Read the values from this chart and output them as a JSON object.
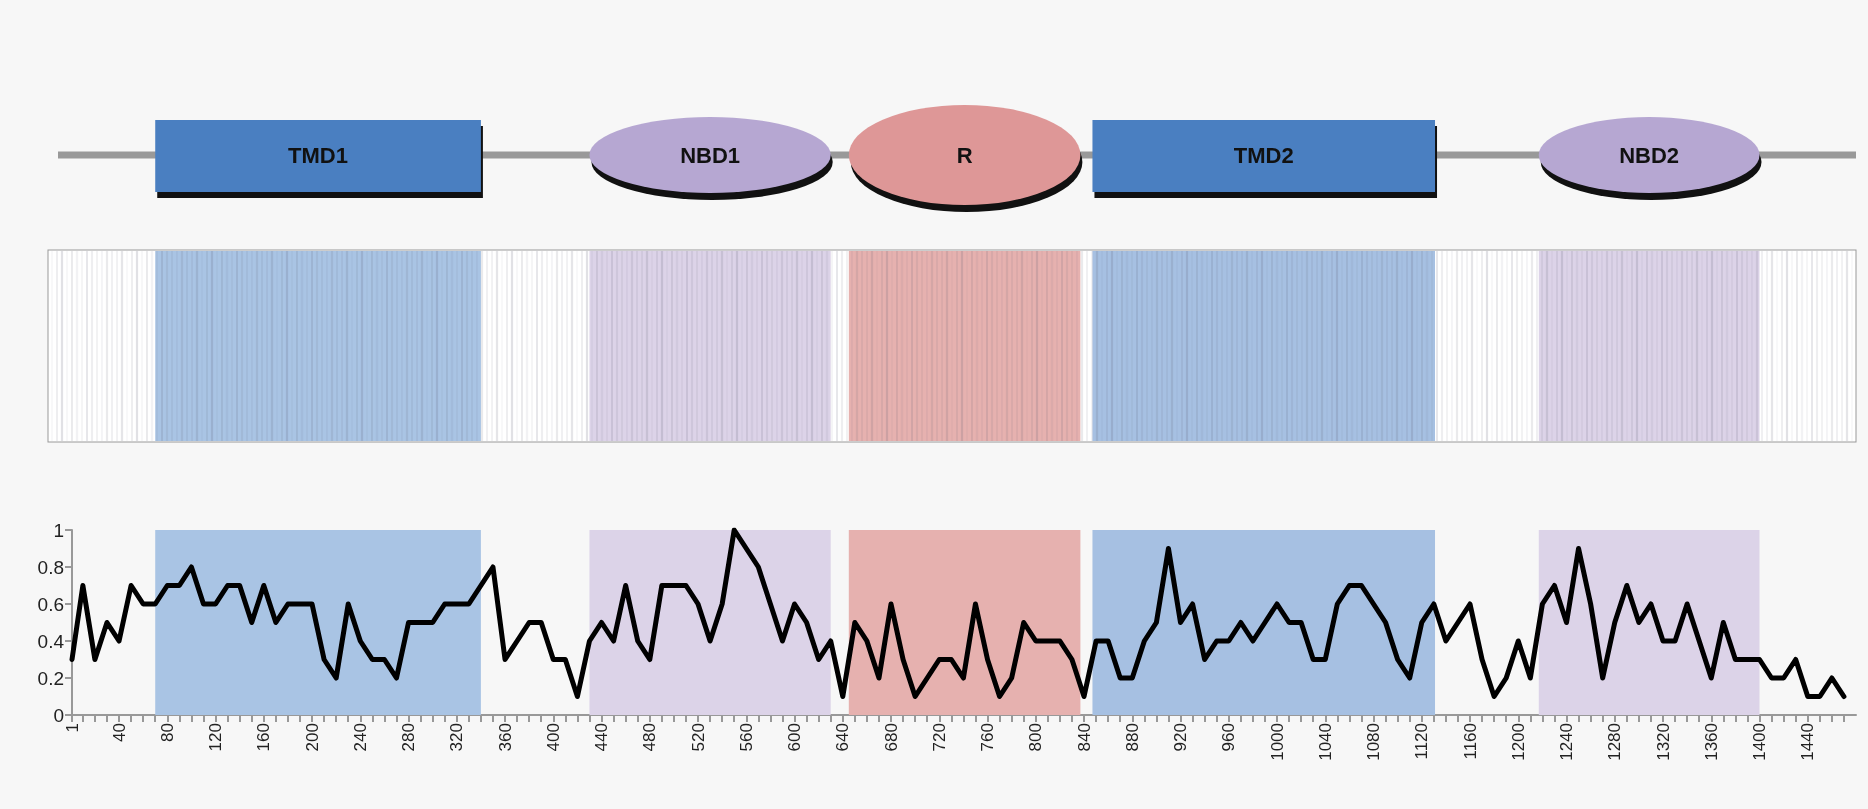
{
  "chart_data": {
    "type": "line",
    "annotations": [
      "TMD1",
      "NBD1",
      "R",
      "TMD2",
      "NBD2"
    ],
    "x": [
      1,
      10,
      20,
      30,
      40,
      50,
      60,
      70,
      80,
      90,
      100,
      110,
      120,
      130,
      140,
      150,
      160,
      170,
      180,
      190,
      200,
      210,
      220,
      230,
      240,
      250,
      260,
      270,
      280,
      290,
      300,
      310,
      320,
      330,
      340,
      350,
      360,
      370,
      380,
      390,
      400,
      410,
      420,
      430,
      440,
      450,
      460,
      470,
      480,
      490,
      500,
      510,
      520,
      530,
      540,
      550,
      560,
      570,
      580,
      590,
      600,
      610,
      620,
      630,
      640,
      650,
      660,
      670,
      680,
      690,
      700,
      710,
      720,
      730,
      740,
      750,
      760,
      770,
      780,
      790,
      800,
      810,
      820,
      830,
      840,
      850,
      860,
      870,
      880,
      890,
      900,
      910,
      920,
      930,
      940,
      950,
      960,
      970,
      980,
      990,
      1000,
      1010,
      1020,
      1030,
      1040,
      1050,
      1060,
      1070,
      1080,
      1090,
      1100,
      1110,
      1120,
      1130,
      1140,
      1150,
      1160,
      1170,
      1180,
      1190,
      1200,
      1210,
      1220,
      1230,
      1240,
      1250,
      1260,
      1270,
      1280,
      1290,
      1300,
      1310,
      1320,
      1330,
      1340,
      1350,
      1360,
      1370,
      1380,
      1390,
      1400,
      1410,
      1420,
      1430,
      1440,
      1450,
      1460,
      1470
    ],
    "series": [
      {
        "color": "#000000",
        "values": [
          0.3,
          0.7,
          0.3,
          0.5,
          0.4,
          0.7,
          0.6,
          0.6,
          0.7,
          0.7,
          0.8,
          0.6,
          0.6,
          0.7,
          0.7,
          0.5,
          0.7,
          0.5,
          0.6,
          0.6,
          0.6,
          0.3,
          0.2,
          0.6,
          0.4,
          0.3,
          0.3,
          0.2,
          0.5,
          0.5,
          0.5,
          0.6,
          0.6,
          0.6,
          0.7,
          0.8,
          0.3,
          0.4,
          0.5,
          0.5,
          0.3,
          0.3,
          0.1,
          0.4,
          0.5,
          0.4,
          0.7,
          0.4,
          0.3,
          0.7,
          0.7,
          0.7,
          0.6,
          0.4,
          0.6,
          1.0,
          0.9,
          0.8,
          0.6,
          0.4,
          0.6,
          0.5,
          0.3,
          0.4,
          0.1,
          0.5,
          0.4,
          0.2,
          0.6,
          0.3,
          0.1,
          0.2,
          0.3,
          0.3,
          0.2,
          0.6,
          0.3,
          0.1,
          0.2,
          0.5,
          0.4,
          0.4,
          0.4,
          0.3,
          0.1,
          0.4,
          0.4,
          0.2,
          0.2,
          0.4,
          0.5,
          0.9,
          0.5,
          0.6,
          0.3,
          0.4,
          0.4,
          0.5,
          0.4,
          0.5,
          0.6,
          0.5,
          0.5,
          0.3,
          0.3,
          0.6,
          0.7,
          0.7,
          0.6,
          0.5,
          0.3,
          0.2,
          0.5,
          0.6,
          0.4,
          0.5,
          0.6,
          0.3,
          0.1,
          0.2,
          0.4,
          0.2,
          0.6,
          0.7,
          0.5,
          0.9,
          0.6,
          0.2,
          0.5,
          0.7,
          0.5,
          0.6,
          0.4,
          0.4,
          0.6,
          0.4,
          0.2,
          0.5,
          0.3,
          0.3,
          0.3,
          0.2,
          0.2,
          0.3,
          0.1,
          0.1,
          0.2,
          0.1
        ]
      }
    ],
    "bands": [
      {
        "axis": "x",
        "from": 70,
        "to": 340,
        "color": "#a9c4e4"
      },
      {
        "axis": "x",
        "from": 430,
        "to": 630,
        "color": "#dcd3e8"
      },
      {
        "axis": "x",
        "from": 645,
        "to": 837,
        "color": "#e6b1af"
      },
      {
        "axis": "x",
        "from": 847,
        "to": 1131,
        "color": "#a6c0e2"
      },
      {
        "axis": "x",
        "from": 1217,
        "to": 1400,
        "color": "#dcd3e8"
      }
    ],
    "xlim": [
      1,
      1480
    ],
    "ylim": [
      0,
      1
    ],
    "yticks": [
      0,
      0.2,
      0.4,
      0.6,
      0.8,
      1
    ],
    "xticks": [
      1,
      {
        "value": 10,
        "label": null
      },
      {
        "value": 20,
        "label": null
      },
      {
        "value": 30,
        "label": null
      },
      40,
      {
        "value": 50,
        "label": null
      },
      {
        "value": 60,
        "label": null
      },
      {
        "value": 70,
        "label": null
      },
      80,
      {
        "value": 90,
        "label": null
      },
      {
        "value": 100,
        "label": null
      },
      {
        "value": 110,
        "label": null
      },
      120,
      {
        "value": 130,
        "label": null
      },
      {
        "value": 140,
        "label": null
      },
      {
        "value": 150,
        "label": null
      },
      160,
      {
        "value": 170,
        "label": null
      },
      {
        "value": 180,
        "label": null
      },
      {
        "value": 190,
        "label": null
      },
      200,
      {
        "value": 210,
        "label": null
      },
      {
        "value": 220,
        "label": null
      },
      {
        "value": 230,
        "label": null
      },
      240,
      {
        "value": 250,
        "label": null
      },
      {
        "value": 260,
        "label": null
      },
      {
        "value": 270,
        "label": null
      },
      280,
      {
        "value": 290,
        "label": null
      },
      {
        "value": 300,
        "label": null
      },
      {
        "value": 310,
        "label": null
      },
      320,
      {
        "value": 330,
        "label": null
      },
      {
        "value": 340,
        "label": null
      },
      {
        "value": 350,
        "label": null
      },
      360,
      {
        "value": 370,
        "label": null
      },
      {
        "value": 380,
        "label": null
      },
      {
        "value": 390,
        "label": null
      },
      400,
      {
        "value": 410,
        "label": null
      },
      {
        "value": 420,
        "label": null
      },
      {
        "value": 430,
        "label": null
      },
      440,
      {
        "value": 450,
        "label": null
      },
      {
        "value": 460,
        "label": null
      },
      {
        "value": 470,
        "label": null
      },
      480,
      {
        "value": 490,
        "label": null
      },
      {
        "value": 500,
        "label": null
      },
      {
        "value": 510,
        "label": null
      },
      520,
      {
        "value": 530,
        "label": null
      },
      {
        "value": 540,
        "label": null
      },
      {
        "value": 550,
        "label": null
      },
      560,
      {
        "value": 570,
        "label": null
      },
      {
        "value": 580,
        "label": null
      },
      {
        "value": 590,
        "label": null
      },
      600,
      {
        "value": 610,
        "label": null
      },
      {
        "value": 620,
        "label": null
      },
      {
        "value": 630,
        "label": null
      },
      640,
      {
        "value": 650,
        "label": null
      },
      {
        "value": 660,
        "label": null
      },
      {
        "value": 670,
        "label": null
      },
      680,
      {
        "value": 690,
        "label": null
      },
      {
        "value": 700,
        "label": null
      },
      {
        "value": 710,
        "label": null
      },
      720,
      {
        "value": 730,
        "label": null
      },
      {
        "value": 740,
        "label": null
      },
      {
        "value": 750,
        "label": null
      },
      760,
      {
        "value": 770,
        "label": null
      },
      {
        "value": 780,
        "label": null
      },
      {
        "value": 790,
        "label": null
      },
      800,
      {
        "value": 810,
        "label": null
      },
      {
        "value": 820,
        "label": null
      },
      {
        "value": 830,
        "label": null
      },
      840,
      {
        "value": 850,
        "label": null
      },
      {
        "value": 860,
        "label": null
      },
      {
        "value": 870,
        "label": null
      },
      880,
      {
        "value": 890,
        "label": null
      },
      {
        "value": 900,
        "label": null
      },
      {
        "value": 910,
        "label": null
      },
      920,
      {
        "value": 930,
        "label": null
      },
      {
        "value": 940,
        "label": null
      },
      {
        "value": 950,
        "label": null
      },
      960,
      {
        "value": 970,
        "label": null
      },
      {
        "value": 980,
        "label": null
      },
      {
        "value": 990,
        "label": null
      },
      1000,
      {
        "value": 1010,
        "label": null
      },
      {
        "value": 1020,
        "label": null
      },
      {
        "value": 1030,
        "label": null
      },
      1040,
      {
        "value": 1050,
        "label": null
      },
      {
        "value": 1060,
        "label": null
      },
      {
        "value": 1070,
        "label": null
      },
      1080,
      {
        "value": 1090,
        "label": null
      },
      {
        "value": 1100,
        "label": null
      },
      {
        "value": 1110,
        "label": null
      },
      1120,
      {
        "value": 1130,
        "label": null
      },
      {
        "value": 1140,
        "label": null
      },
      {
        "value": 1150,
        "label": null
      },
      1160,
      {
        "value": 1170,
        "label": null
      },
      {
        "value": 1180,
        "label": null
      },
      {
        "value": 1190,
        "label": null
      },
      1200,
      {
        "value": 1210,
        "label": null
      },
      {
        "value": 1220,
        "label": null
      },
      {
        "value": 1230,
        "label": null
      },
      1240,
      {
        "value": 1250,
        "label": null
      },
      {
        "value": 1260,
        "label": null
      },
      {
        "value": 1270,
        "label": null
      },
      1280,
      {
        "value": 1290,
        "label": null
      },
      {
        "value": 1300,
        "label": null
      },
      {
        "value": 1310,
        "label": null
      },
      1320,
      {
        "value": 1330,
        "label": null
      },
      {
        "value": 1340,
        "label": null
      },
      {
        "value": 1350,
        "label": null
      },
      1360,
      {
        "value": 1370,
        "label": null
      },
      {
        "value": 1380,
        "label": null
      },
      {
        "value": 1390,
        "label": null
      },
      1400,
      {
        "value": 1410,
        "label": null
      },
      {
        "value": 1420,
        "label": null
      },
      {
        "value": 1430,
        "label": null
      },
      1440,
      {
        "value": 1450,
        "label": null
      },
      {
        "value": 1460,
        "label": null
      },
      {
        "value": 1470,
        "label": null
      }
    ],
    "grid": false,
    "marker": "none",
    "line_style": "solid"
  }
}
